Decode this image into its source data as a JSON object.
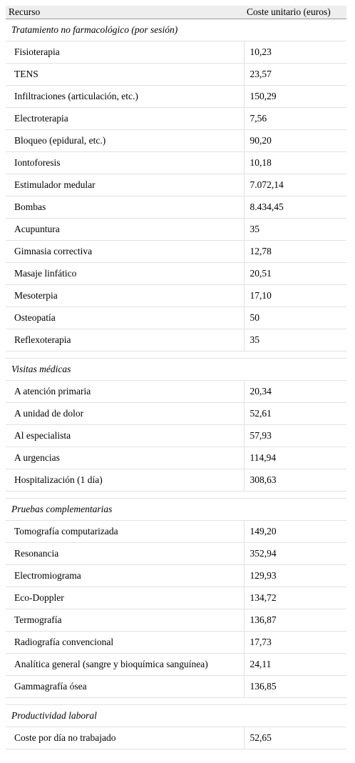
{
  "header": {
    "col1": "Recurso",
    "col2": "Coste unitario (euros)"
  },
  "sections": [
    {
      "title": "Tratamiento no farmacológico (por sesión)",
      "rows": [
        {
          "name": "Fisioterapia",
          "value": "10,23"
        },
        {
          "name": "TENS",
          "value": "23,57"
        },
        {
          "name": "Infiltraciones (articulación, etc.)",
          "value": "150,29"
        },
        {
          "name": "Electroterapia",
          "value": "7,56"
        },
        {
          "name": "Bloqueo (epidural, etc.)",
          "value": "90,20"
        },
        {
          "name": "Iontoforesis",
          "value": "10,18"
        },
        {
          "name": "Estimulador medular",
          "value": "7.072,14"
        },
        {
          "name": "Bombas",
          "value": "8.434,45"
        },
        {
          "name": "Acupuntura",
          "value": "35"
        },
        {
          "name": "Gimnasia correctiva",
          "value": "12,78"
        },
        {
          "name": "Masaje linfático",
          "value": "20,51"
        },
        {
          "name": "Mesoterpia",
          "value": "17,10"
        },
        {
          "name": "Osteopatía",
          "value": "50"
        },
        {
          "name": "Reflexoterapia",
          "value": "35"
        }
      ]
    },
    {
      "title": "Visitas médicas",
      "rows": [
        {
          "name": "A atención primaria",
          "value": "20,34"
        },
        {
          "name": "A unidad de dolor",
          "value": "52,61"
        },
        {
          "name": "Al especialista",
          "value": "57,93"
        },
        {
          "name": "A urgencias",
          "value": "114,94"
        },
        {
          "name": "Hospitalización (1 día)",
          "value": "308,63"
        }
      ]
    },
    {
      "title": "Pruebas complementarias",
      "rows": [
        {
          "name": "Tomografía computarizada",
          "value": "149,20"
        },
        {
          "name": "Resonancia",
          "value": "352,94"
        },
        {
          "name": "Electromiograma",
          "value": "129,93"
        },
        {
          "name": "Eco-Doppler",
          "value": "134,72"
        },
        {
          "name": "Termografía",
          "value": "136,87"
        },
        {
          "name": "Radiografía convencional",
          "value": "17,73"
        },
        {
          "name": "Analítica general (sangre y bioquímica sanguínea)",
          "value": "24,11"
        },
        {
          "name": "Gammagrafía ósea",
          "value": "136,85"
        }
      ]
    },
    {
      "title": "Productividad laboral",
      "rows": [
        {
          "name": "Coste por día no trabajado",
          "value": "52,65"
        }
      ]
    }
  ]
}
